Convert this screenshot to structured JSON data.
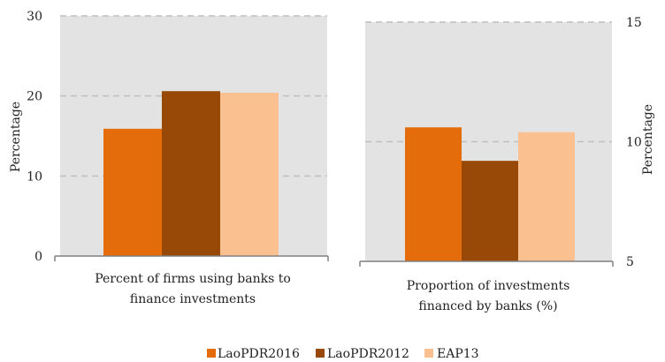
{
  "chart_data": [
    {
      "type": "bar",
      "categories": [
        "Percent of firms using banks to finance investments"
      ],
      "category_lines": [
        "Percent of firms using banks to",
        "finance investments"
      ],
      "series": [
        {
          "name": "LaoPDR2016",
          "values": [
            15.9
          ]
        },
        {
          "name": "LaoPDR2012",
          "values": [
            20.6
          ]
        },
        {
          "name": "EAP13",
          "values": [
            20.4
          ]
        }
      ],
      "ylabel": "Percentage",
      "ylim": [
        0,
        30
      ],
      "yticks": [
        0,
        10,
        20,
        30
      ],
      "yaxis_side": "left",
      "grid": true
    },
    {
      "type": "bar",
      "categories": [
        "Proportion of investments financed by banks (%)"
      ],
      "category_lines": [
        "Proportion of investments",
        "financed by banks (%)"
      ],
      "series": [
        {
          "name": "LaoPDR2016",
          "values": [
            10.6
          ]
        },
        {
          "name": "LaoPDR2012",
          "values": [
            9.2
          ]
        },
        {
          "name": "EAP13",
          "values": [
            10.4
          ]
        }
      ],
      "ylabel": "Percentage",
      "ylim": [
        5,
        15
      ],
      "yticks": [
        5,
        10,
        15
      ],
      "yaxis_side": "right",
      "grid": true
    }
  ],
  "legend": {
    "position": "bottom",
    "items": [
      {
        "label": "LaoPDR2016",
        "color": "#E46C0A"
      },
      {
        "label": "LaoPDR2012",
        "color": "#984807"
      },
      {
        "label": "EAP13",
        "color": "#FAC090"
      }
    ]
  },
  "colors": {
    "plot_bg": "#E3E3E3",
    "grid": "#BFBFBF",
    "axis": "#808080"
  }
}
